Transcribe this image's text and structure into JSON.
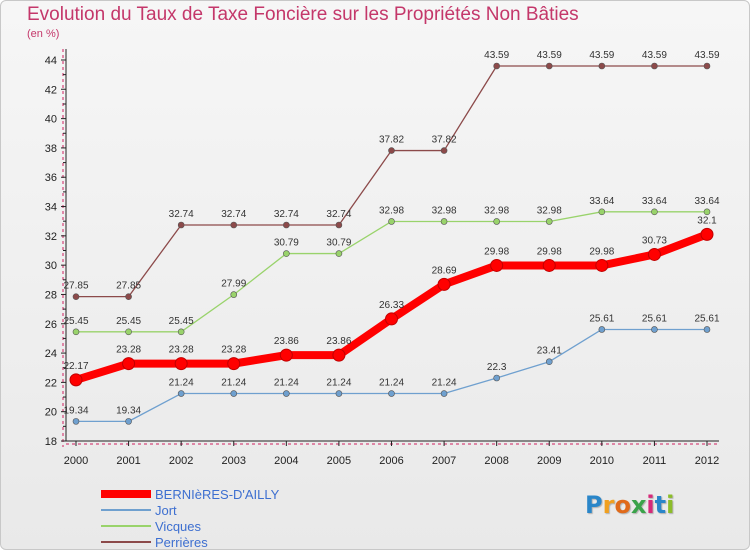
{
  "title": "Evolution du Taux de Taxe Foncière sur les Propriétés Non Bâties",
  "unit_label": "(en %)",
  "logo_text": "Proxiti",
  "chart_data": {
    "type": "line",
    "x": [
      "2000",
      "2001",
      "2002",
      "2003",
      "2004",
      "2005",
      "2006",
      "2007",
      "2008",
      "2009",
      "2010",
      "2011",
      "2012"
    ],
    "ylim": [
      18,
      44
    ],
    "yticks": [
      18,
      20,
      22,
      24,
      26,
      28,
      30,
      32,
      34,
      36,
      38,
      40,
      42,
      44
    ],
    "grid": false,
    "legend_position": "bottom-left",
    "series": [
      {
        "name": "BERNIèRES-D'AILLY",
        "color": "#ff0000",
        "values": [
          22.17,
          23.28,
          23.28,
          23.28,
          23.86,
          23.86,
          26.33,
          28.69,
          29.98,
          29.98,
          29.98,
          30.73,
          32.1
        ],
        "labels": [
          "22.17",
          "23.28",
          "23.28",
          "23.28",
          "23.86",
          "23.86",
          "26.33",
          "28.69",
          "29.98",
          "29.98",
          "29.98",
          "30.73",
          "32.1"
        ]
      },
      {
        "name": "Jort",
        "color": "#6fa0cf",
        "values": [
          19.34,
          19.34,
          21.24,
          21.24,
          21.24,
          21.24,
          21.24,
          21.24,
          22.3,
          23.41,
          25.61,
          25.61,
          25.61
        ],
        "labels": [
          "19.34",
          "19.34",
          "21.24",
          "21.24",
          "21.24",
          "21.24",
          "21.24",
          "21.24",
          "22.3",
          "23.41",
          "25.61",
          "25.61",
          "25.61"
        ]
      },
      {
        "name": "Vicques",
        "color": "#99d36b",
        "values": [
          25.45,
          25.45,
          25.45,
          27.99,
          30.79,
          30.79,
          32.98,
          32.98,
          32.98,
          32.98,
          33.64,
          33.64,
          33.64
        ],
        "labels": [
          "25.45",
          "25.45",
          "25.45",
          "27.99",
          "30.79",
          "30.79",
          "32.98",
          "32.98",
          "32.98",
          "32.98",
          "33.64",
          "33.64",
          "33.64"
        ]
      },
      {
        "name": "Perrières",
        "color": "#8c4a4a",
        "values": [
          27.85,
          27.85,
          32.74,
          32.74,
          32.74,
          32.74,
          37.82,
          37.82,
          43.59,
          43.59,
          43.59,
          43.59,
          43.59
        ],
        "labels": [
          "27.85",
          "27.85",
          "32.74",
          "32.74",
          "32.74",
          "32.74",
          "37.82",
          "37.82",
          "43.59",
          "43.59",
          "43.59",
          "43.59",
          "43.59"
        ]
      }
    ]
  }
}
